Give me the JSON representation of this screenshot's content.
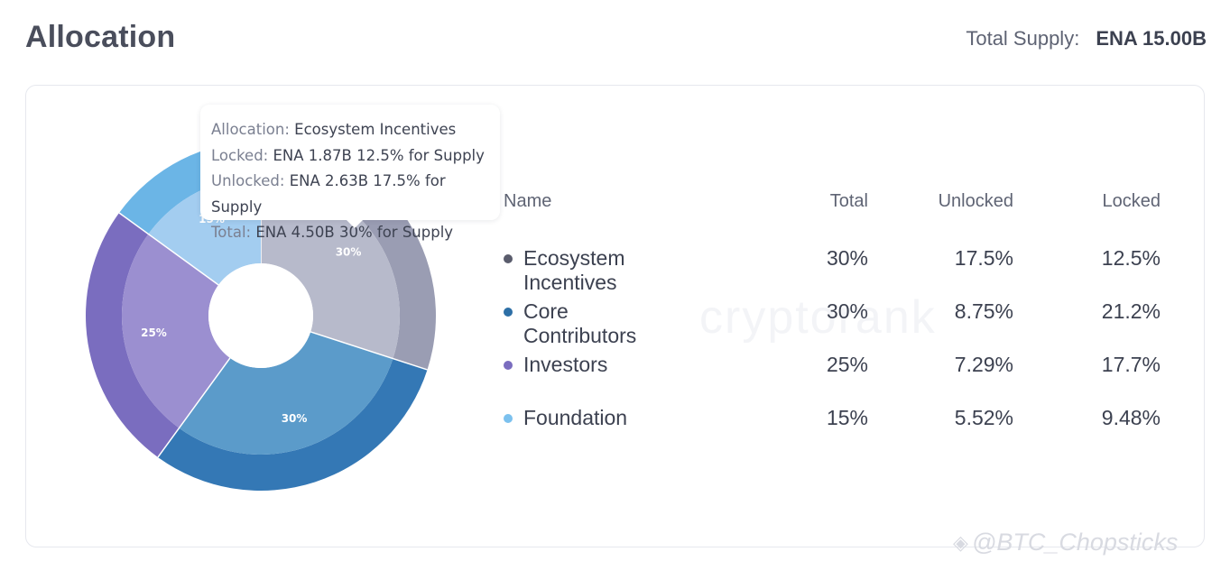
{
  "header": {
    "title": "Allocation",
    "total_supply_label": "Total Supply:",
    "total_supply_value": "ENA 15.00B"
  },
  "tooltip": {
    "allocation_label": "Allocation:",
    "allocation_value": "Ecosystem Incentives",
    "locked_label": "Locked:",
    "locked_value": "ENA 1.87B 12.5% for Supply",
    "unlocked_label": "Unlocked:",
    "unlocked_value": "ENA 2.63B 17.5% for Supply",
    "total_label": "Total:",
    "total_value": "ENA 4.50B 30% for Supply"
  },
  "table": {
    "headers": {
      "name": "Name",
      "total": "Total",
      "unlocked": "Unlocked",
      "locked": "Locked"
    },
    "rows": [
      {
        "name": "Ecosystem Incentives",
        "total": "30%",
        "unlocked": "17.5%",
        "locked": "12.5%"
      },
      {
        "name": "Core Contributors",
        "total": "30%",
        "unlocked": "8.75%",
        "locked": "21.2%"
      },
      {
        "name": "Investors",
        "total": "25%",
        "unlocked": "7.29%",
        "locked": "17.7%"
      },
      {
        "name": "Foundation",
        "total": "15%",
        "unlocked": "5.52%",
        "locked": "9.48%"
      }
    ]
  },
  "watermark": "cryptorank",
  "credit": "@BTC_Chopsticks",
  "chart_data": {
    "type": "pie",
    "title": "Allocation",
    "categories": [
      "Ecosystem Incentives",
      "Core Contributors",
      "Investors",
      "Foundation"
    ],
    "series": [
      {
        "name": "Locked",
        "values": [
          12.5,
          21.2,
          17.7,
          9.48
        ]
      },
      {
        "name": "Unlocked",
        "values": [
          17.5,
          8.75,
          7.29,
          5.52
        ]
      }
    ],
    "totals": [
      30,
      30,
      25,
      15
    ],
    "slice_labels": [
      "30%",
      "30%",
      "25%",
      "15%"
    ],
    "colors": {
      "outer": [
        "#9a9db3",
        "#3478b5",
        "#7a6dbf",
        "#6bb5e6"
      ],
      "inner": [
        "#b7bacb",
        "#5b9bca",
        "#9b8fd0",
        "#a3cdf0"
      ],
      "legend": [
        "#5a5c6c",
        "#2d6fa6",
        "#7a6dbf",
        "#7cc1ee"
      ]
    }
  }
}
